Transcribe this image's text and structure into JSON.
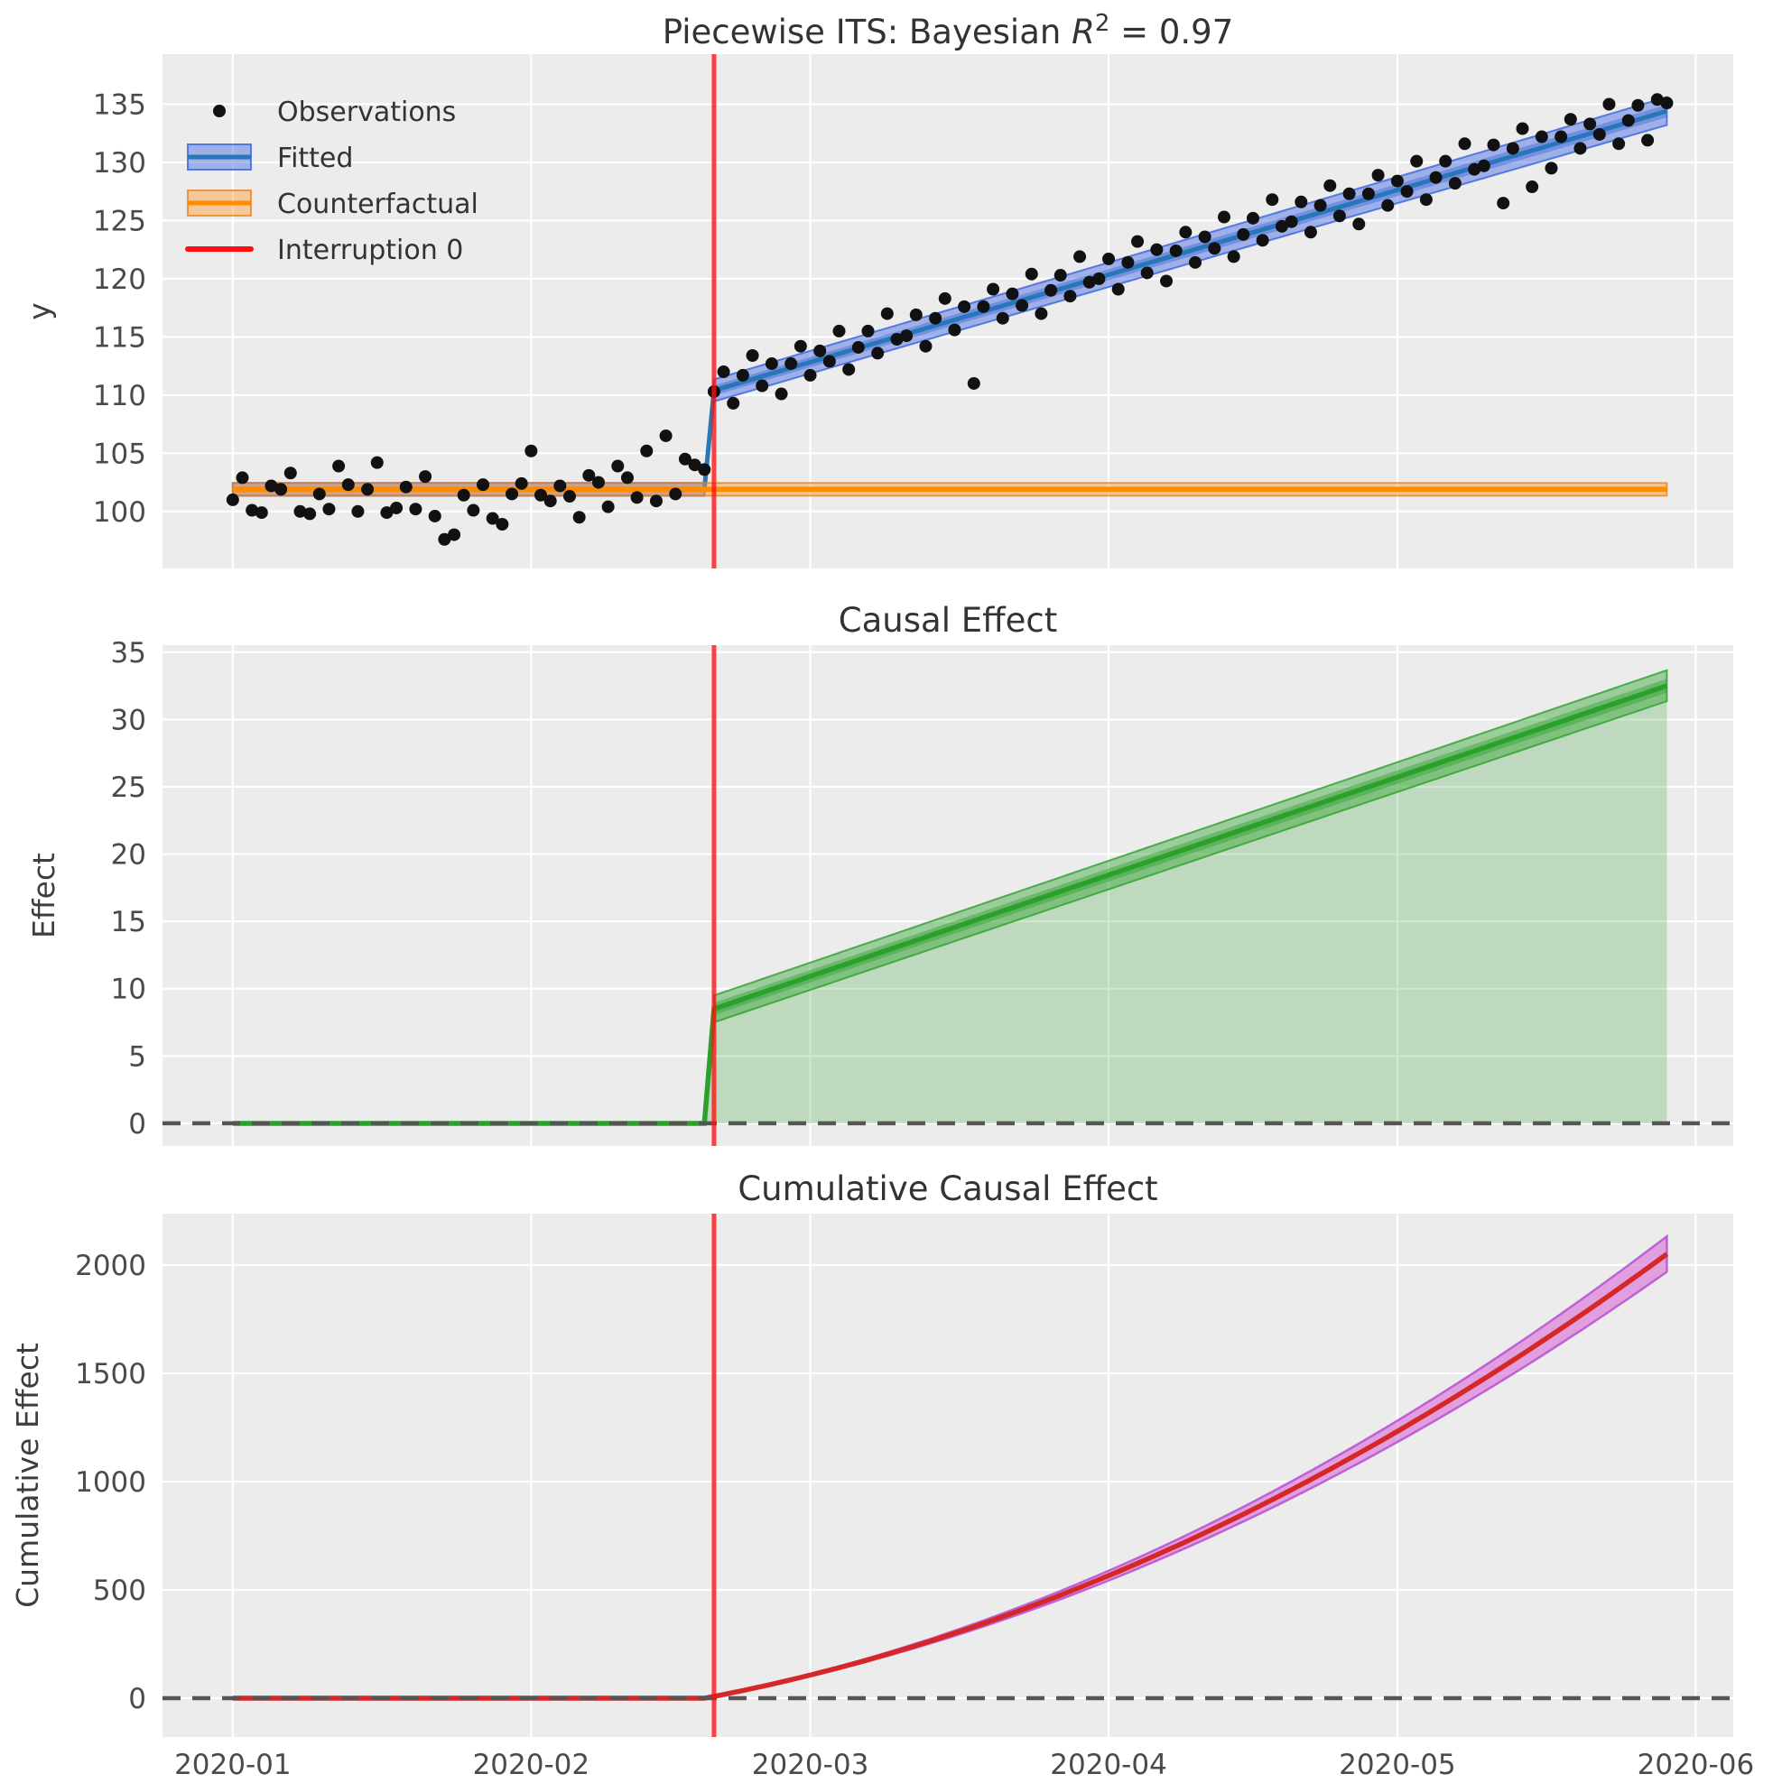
{
  "figure": {
    "panels": [
      {
        "title_prefix": "Piecewise ITS: Bayesian ",
        "title_math": "R",
        "title_sup": "2",
        "title_suffix": " = 0.97",
        "ylabel": "y",
        "ylim": [
          95.1,
          139.3
        ],
        "yticks": [
          100,
          105,
          110,
          115,
          120,
          125,
          130,
          135
        ]
      },
      {
        "title": "Causal Effect",
        "ylabel": "Effect",
        "ylim": [
          -1.68,
          35.52
        ],
        "yticks": [
          0,
          5,
          10,
          15,
          20,
          25,
          30,
          35
        ]
      },
      {
        "title": "Cumulative Causal Effect",
        "ylabel": "Cumulative Effect",
        "ylim": [
          -179,
          2237
        ],
        "yticks": [
          0,
          500,
          1000,
          1500,
          2000
        ]
      }
    ],
    "legend": {
      "observations": "Observations",
      "fitted": "Fitted",
      "counterfactual": "Counterfactual",
      "interruption": "Interruption 0"
    }
  },
  "chart_data": {
    "type": "line",
    "xlim_days": [
      -7.3,
      155.9
    ],
    "x_tick_days": [
      0,
      31,
      60,
      91,
      121,
      152
    ],
    "x_tick_labels": [
      "2020-01",
      "2020-02",
      "2020-03",
      "2020-04",
      "2020-05",
      "2020-06"
    ],
    "start_date": "2020-01-01",
    "n_days": 150,
    "interruption_day": 50,
    "observations": [
      101.0,
      102.9,
      100.1,
      99.9,
      102.2,
      101.9,
      103.3,
      100.0,
      99.8,
      101.5,
      100.2,
      103.9,
      102.3,
      100.0,
      101.9,
      104.2,
      99.9,
      100.3,
      102.1,
      100.2,
      103.0,
      99.6,
      97.6,
      98.0,
      101.4,
      100.1,
      102.3,
      99.4,
      98.9,
      101.5,
      102.4,
      105.2,
      101.4,
      100.9,
      102.2,
      101.3,
      99.5,
      103.1,
      102.5,
      100.4,
      103.9,
      102.9,
      101.2,
      105.2,
      100.9,
      106.5,
      101.5,
      104.5,
      104.0,
      103.6,
      110.3,
      112.0,
      109.3,
      111.7,
      113.4,
      110.8,
      112.7,
      110.1,
      112.7,
      114.2,
      111.7,
      113.8,
      112.9,
      115.5,
      112.2,
      114.1,
      115.5,
      113.6,
      117.0,
      114.8,
      115.1,
      116.9,
      114.2,
      116.6,
      118.3,
      115.6,
      117.6,
      111.0,
      117.6,
      119.1,
      116.6,
      118.7,
      117.7,
      120.4,
      117.0,
      119.0,
      120.3,
      118.5,
      121.9,
      119.7,
      120.0,
      121.7,
      119.1,
      121.4,
      123.2,
      120.5,
      122.5,
      119.8,
      122.4,
      124.0,
      121.4,
      123.6,
      122.6,
      125.3,
      121.9,
      123.8,
      125.2,
      123.3,
      126.8,
      124.5,
      124.9,
      126.6,
      124.0,
      126.3,
      128.0,
      125.4,
      127.3,
      124.7,
      127.3,
      128.9,
      126.3,
      128.4,
      127.5,
      130.1,
      126.8,
      128.7,
      130.1,
      128.2,
      131.6,
      129.4,
      129.7,
      131.5,
      126.5,
      131.2,
      132.9,
      127.9,
      132.2,
      129.5,
      132.2,
      133.7,
      131.2,
      133.3,
      132.4,
      135.0,
      131.6,
      133.6,
      134.9,
      131.9,
      135.4,
      135.1
    ],
    "counterfactual": {
      "value": 101.9,
      "band_halfwidth": 0.55
    },
    "fitted": {
      "pre_value": 101.9,
      "post_start": 110.4,
      "post_end": 134.4,
      "slope_per_day": 0.2425,
      "band_halfwidth_start": 0.95,
      "band_halfwidth_end": 1.2
    },
    "effect": {
      "pre_value": 0,
      "jump": 8.5,
      "slope_per_day": 0.2425,
      "end_value": 32.5,
      "band_halfwidth_start": 1.0,
      "band_halfwidth_end": 1.15
    },
    "cumulative_effect": {
      "pre_value": 0,
      "end_value": 2050,
      "band_fraction": 0.04
    }
  },
  "colors": {
    "axes_bg": "#ececec",
    "grid": "#ffffff",
    "tick_label": "#4a4a4a",
    "title": "#333333",
    "observations": "#111111",
    "fitted_line": "#2878b8",
    "fitted_band": "rgba(65,105,225,0.45)",
    "fitted_band_edge": "rgba(65,105,225,0.85)",
    "counterfactual_line": "#ff8c00",
    "counterfactual_band": "rgba(255,150,40,0.42)",
    "counterfactual_band_edge": "rgba(235,125,20,0.75)",
    "interruption_line": "rgba(255,16,16,0.78)",
    "effect_line": "#2ca02c",
    "effect_band": "rgba(44,160,44,0.42)",
    "effect_fill": "rgba(44,160,44,0.24)",
    "cumulative_line": "#d62728",
    "cumulative_band": "rgba(218,112,214,0.62)",
    "cumulative_band_edge": "rgba(186,85,211,0.9)",
    "zero_dash": "#555555"
  }
}
